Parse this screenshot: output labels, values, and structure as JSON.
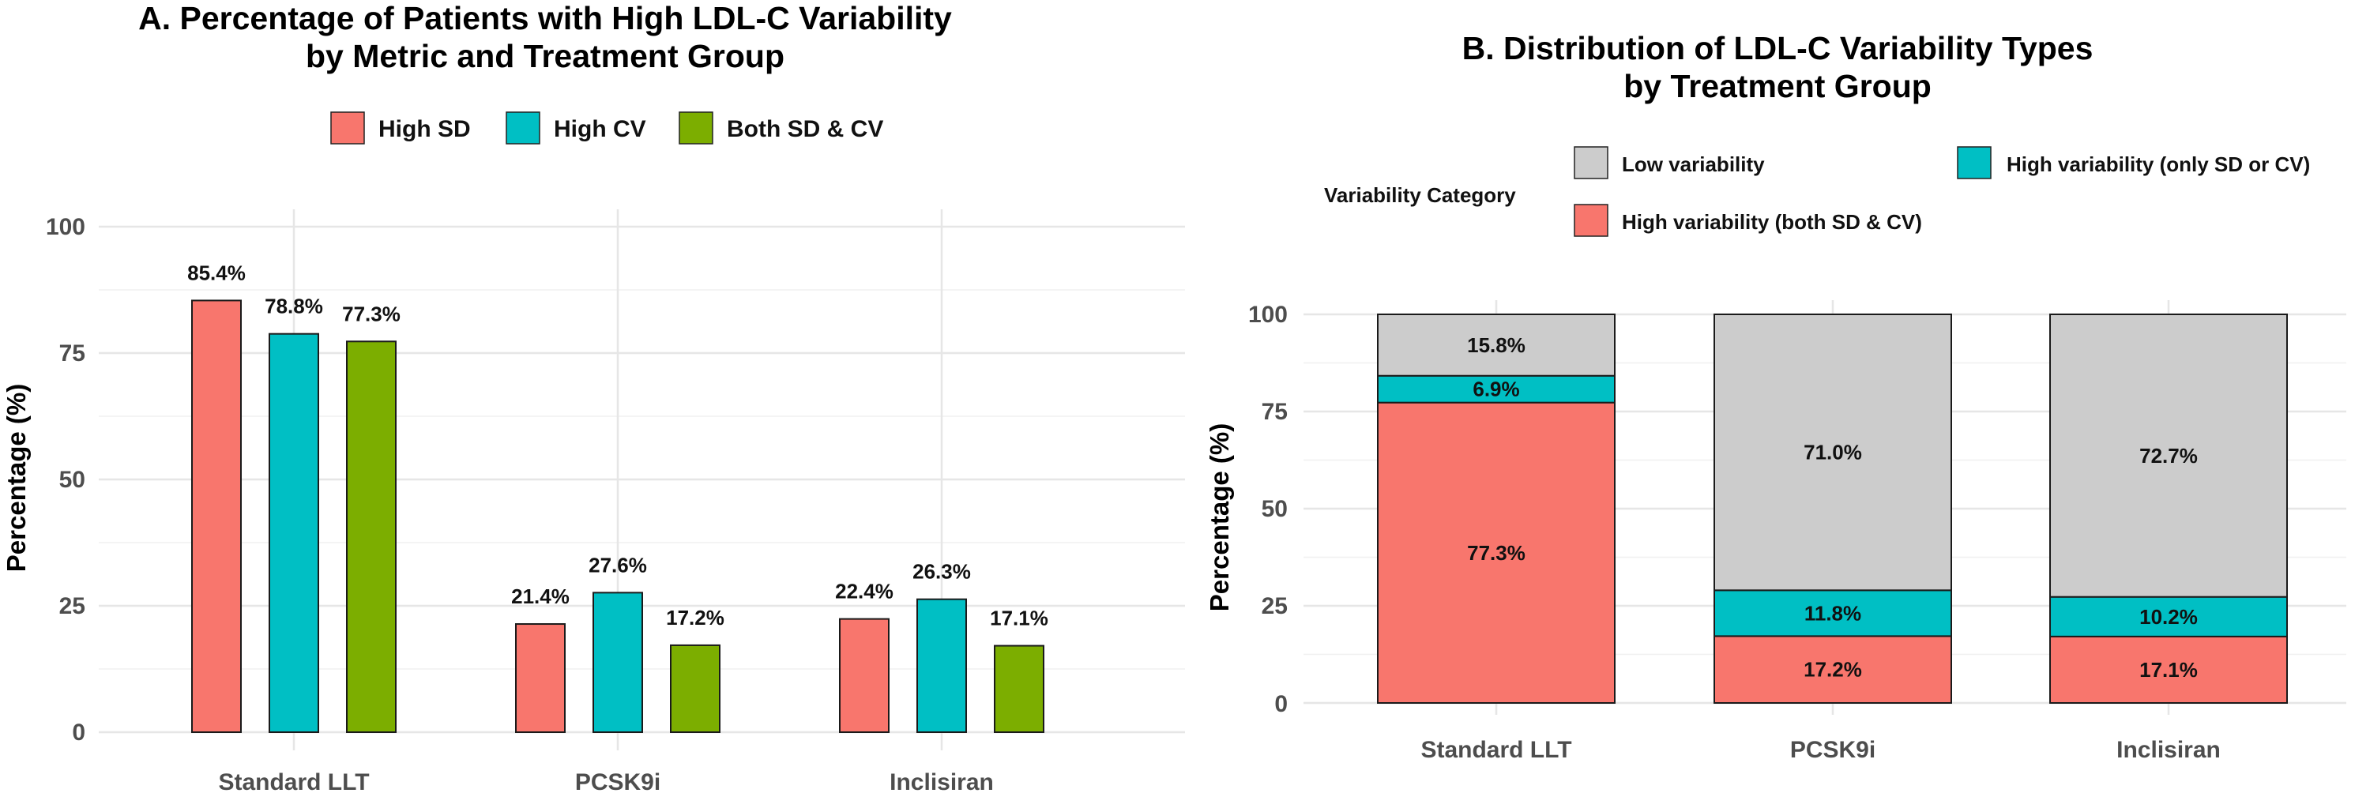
{
  "colors": {
    "high_sd": "#F8766D",
    "high_cv": "#00BFC4",
    "both": "#7CAE00",
    "low": "#cccccc"
  },
  "chart_data": [
    {
      "type": "bar",
      "title_line1": "A. Percentage of Patients with High LDL-C Variability",
      "title_line2": "by Metric and Treatment Group",
      "ylabel": "Percentage (%)",
      "xlabel": "",
      "ylim": [
        0,
        100
      ],
      "yticks": [
        0,
        25,
        50,
        75,
        100
      ],
      "categories": [
        "Standard LLT",
        "PCSK9i",
        "Inclisiran"
      ],
      "legend_position": "top",
      "series": [
        {
          "name": "High SD",
          "values": [
            85.4,
            21.4,
            22.4
          ],
          "labels": [
            "85.4%",
            "21.4%",
            "22.4%"
          ]
        },
        {
          "name": "High CV",
          "values": [
            78.8,
            27.6,
            26.3
          ],
          "labels": [
            "78.8%",
            "27.6%",
            "26.3%"
          ]
        },
        {
          "name": "Both SD & CV",
          "values": [
            77.3,
            17.2,
            17.1
          ],
          "labels": [
            "77.3%",
            "17.2%",
            "17.1%"
          ]
        }
      ]
    },
    {
      "type": "stacked_bar",
      "title_line1": "B. Distribution of LDL-C Variability Types",
      "title_line2": "by Treatment Group",
      "ylabel": "Percentage (%)",
      "xlabel": "",
      "ylim": [
        0,
        100
      ],
      "yticks": [
        0,
        25,
        50,
        75,
        100
      ],
      "categories": [
        "Standard LLT",
        "PCSK9i",
        "Inclisiran"
      ],
      "legend_title": "Variability Category",
      "legend_position": "top",
      "series": [
        {
          "name": "High variability (both SD & CV)",
          "values": [
            77.3,
            17.2,
            17.1
          ],
          "labels": [
            "77.3%",
            "17.2%",
            "17.1%"
          ]
        },
        {
          "name": "High variability (only SD or CV)",
          "values": [
            6.9,
            11.8,
            10.2
          ],
          "labels": [
            "6.9%",
            "11.8%",
            "10.2%"
          ]
        },
        {
          "name": "Low variability",
          "values": [
            15.8,
            71.0,
            72.7
          ],
          "labels": [
            "15.8%",
            "71.0%",
            "72.7%"
          ]
        }
      ]
    }
  ]
}
